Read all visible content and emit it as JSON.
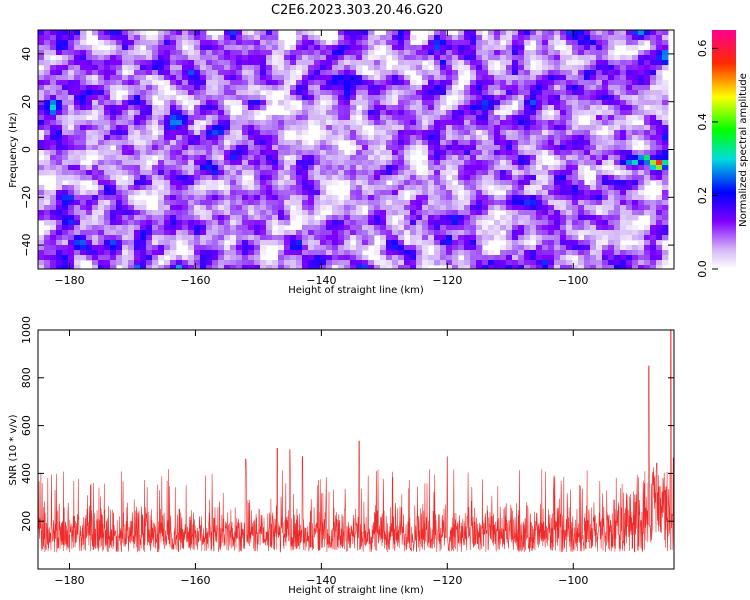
{
  "title": "C2E6.2023.303.20.46.G20",
  "chart_data": [
    {
      "type": "heatmap",
      "xlabel": "Height of straight line (km)",
      "ylabel": "Frequency (Hz)",
      "xlim": [
        -185,
        -84
      ],
      "ylim": [
        -50,
        50
      ],
      "xticks": [
        -180,
        -160,
        -140,
        -120,
        -100
      ],
      "yticks": [
        -40,
        -20,
        0,
        20,
        40
      ],
      "colorbar": {
        "label": "Normalized spectral amplitude",
        "range": [
          0,
          0.65
        ],
        "ticks": [
          0.0,
          0.2,
          0.4,
          0.6
        ],
        "colormap": "white-purple-blue-cyan-green-yellow-red-magenta"
      },
      "background_level": 0.08,
      "hotspots": [
        {
          "x": -86.5,
          "y": -6,
          "value": 0.58
        },
        {
          "x": -88.5,
          "y": -4,
          "value": 0.35
        },
        {
          "x": -90.5,
          "y": -5.5,
          "value": 0.3
        },
        {
          "x": -92,
          "y": -5,
          "value": 0.2
        },
        {
          "x": -85,
          "y": -1,
          "value": 0.22
        },
        {
          "x": -161.5,
          "y": 7,
          "value": 0.15
        },
        {
          "x": -159.5,
          "y": 3,
          "value": 0.14
        },
        {
          "x": -154,
          "y": -4,
          "value": 0.14
        },
        {
          "x": -142,
          "y": -23,
          "value": 0.15
        },
        {
          "x": -136,
          "y": -28,
          "value": 0.12
        },
        {
          "x": -148,
          "y": -12,
          "value": 0.12
        }
      ]
    },
    {
      "type": "line",
      "xlabel": "Height of straight line (km)",
      "ylabel": "SNR (10 * v/v)",
      "xlim": [
        -185,
        -84
      ],
      "ylim": [
        0,
        1000
      ],
      "xticks": [
        -180,
        -160,
        -140,
        -120,
        -100
      ],
      "yticks": [
        200,
        400,
        600,
        800,
        1000
      ],
      "series": [
        {
          "color": "#ee2b2b",
          "typical_range": [
            70,
            300
          ],
          "peaks": [
            {
              "x": -134,
              "y": 535
            },
            {
              "x": -147,
              "y": 505
            },
            {
              "x": -145,
              "y": 500
            },
            {
              "x": -152,
              "y": 460
            },
            {
              "x": -143,
              "y": 470
            },
            {
              "x": -120,
              "y": 470
            },
            {
              "x": -88,
              "y": 850
            },
            {
              "x": -86.5,
              "y": 620
            },
            {
              "x": -84.5,
              "y": 1000
            }
          ]
        }
      ]
    }
  ]
}
